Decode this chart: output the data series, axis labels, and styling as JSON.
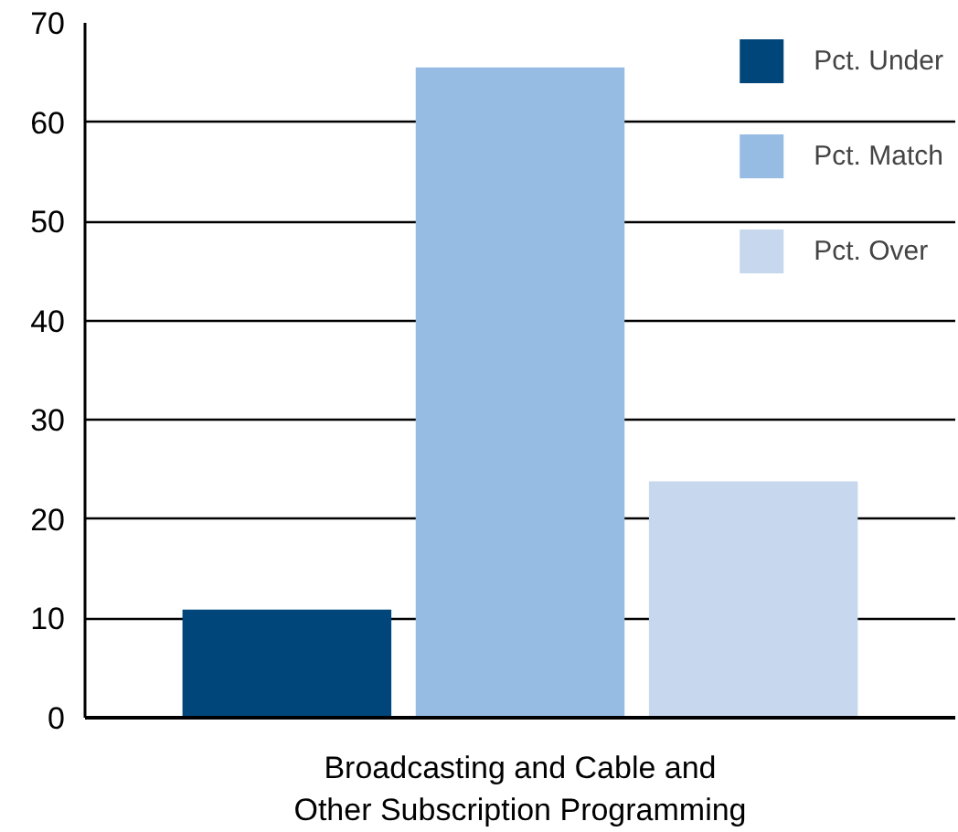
{
  "chart_data": {
    "type": "bar",
    "categories": [
      "Broadcasting and Cable and\nOther Subscription Programming"
    ],
    "series": [
      {
        "name": "Pct. Under",
        "color": "#00467a",
        "values": [
          10.9
        ]
      },
      {
        "name": "Pct. Match",
        "color": "#97bce3",
        "values": [
          65.5
        ]
      },
      {
        "name": "Pct. Over",
        "color": "#c6d7ee",
        "values": [
          23.8
        ]
      }
    ],
    "ylim": [
      0,
      70
    ],
    "yticks": [
      0,
      10,
      20,
      30,
      40,
      50,
      60,
      70
    ],
    "grid": "y",
    "legend": "top right"
  }
}
